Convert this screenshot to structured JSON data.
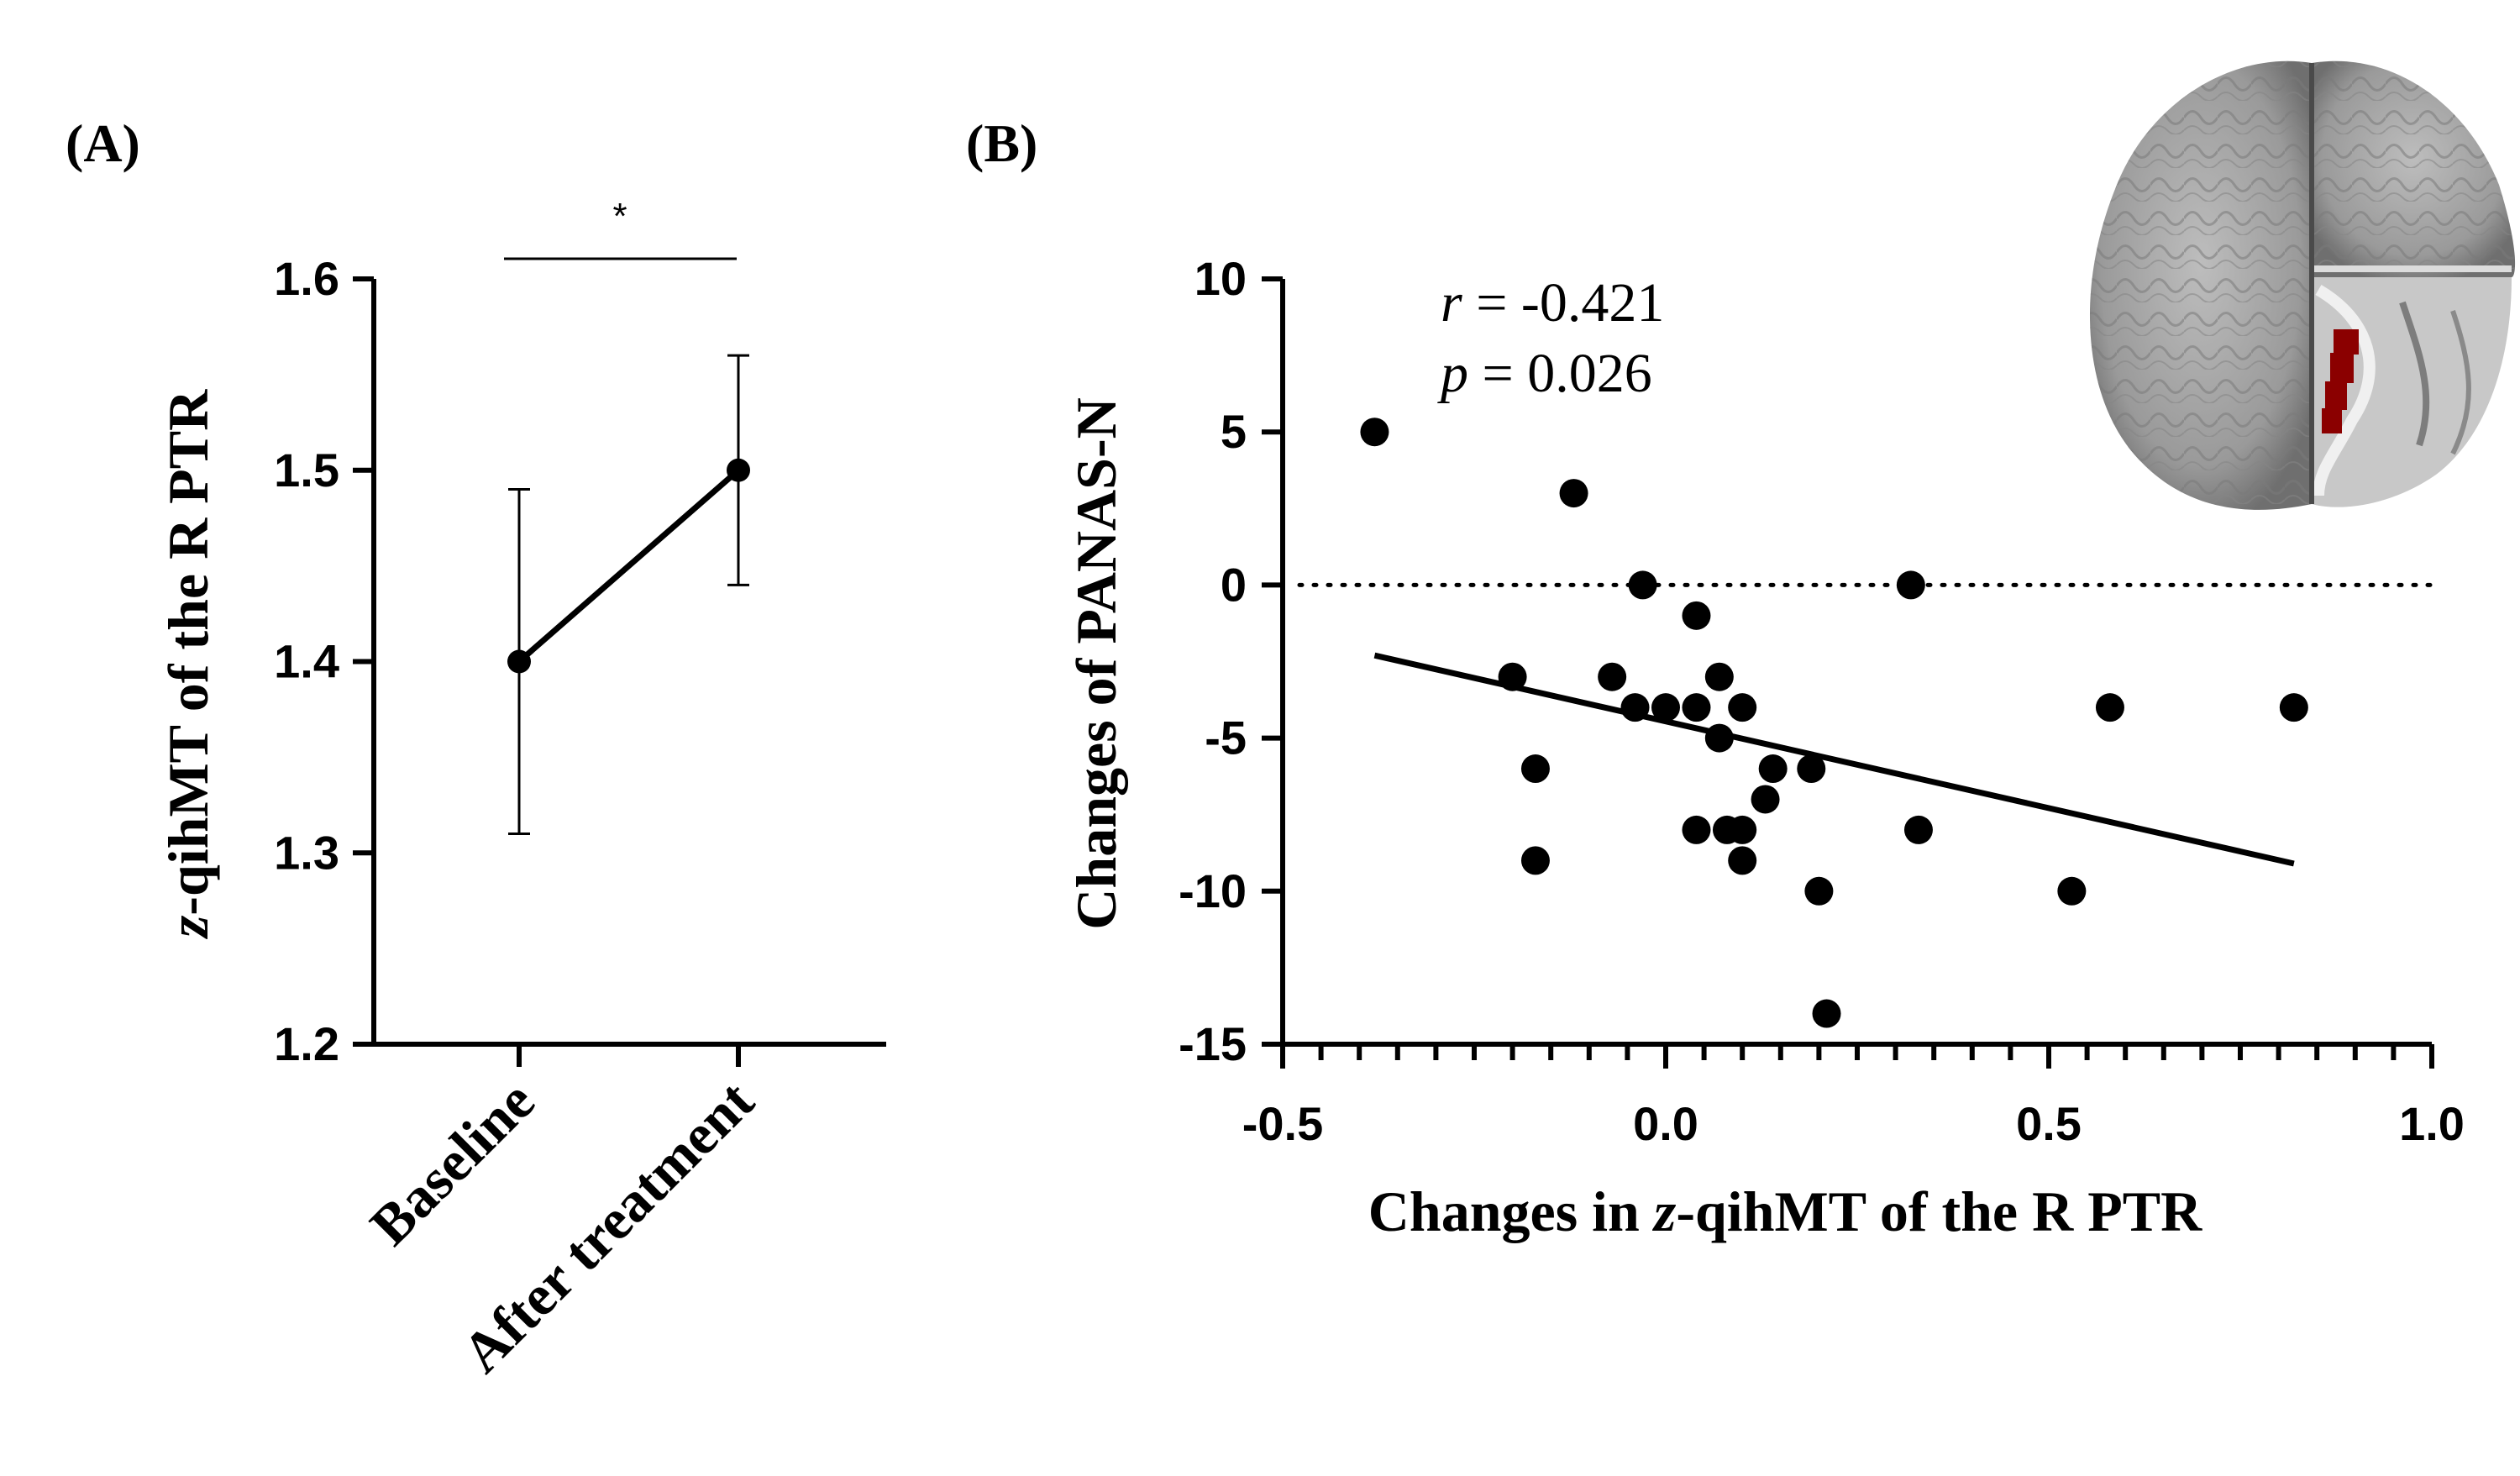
{
  "figure": {
    "panel_a_label": "(A)",
    "panel_b_label": "(B)"
  },
  "chart_data": [
    {
      "type": "line",
      "title": "",
      "xlabel": "",
      "ylabel_italic": "z",
      "ylabel_rest": "-qihMT of the R PTR",
      "categories": [
        "Baseline",
        "After treatment"
      ],
      "series": [
        {
          "name": "z-qihMT of the R PTR",
          "values": [
            1.4,
            1.5
          ],
          "error_low": [
            1.31,
            1.44
          ],
          "error_high": [
            1.49,
            1.56
          ]
        }
      ],
      "ylim": [
        1.2,
        1.6
      ],
      "yticks": [
        1.2,
        1.3,
        1.4,
        1.5,
        1.6
      ],
      "ytick_labels": [
        "1.2",
        "1.3",
        "1.4",
        "1.5",
        "1.6"
      ],
      "significance": "*"
    },
    {
      "type": "scatter",
      "title": "",
      "xlabel_prefix": "Changes in ",
      "xlabel_italic": "z",
      "xlabel_suffix": "-qihMT of the R PTR",
      "ylabel": "Changes of PANAS-N",
      "xlim": [
        -0.5,
        1.0
      ],
      "ylim": [
        -15,
        10
      ],
      "xticks": [
        -0.5,
        0.0,
        0.5,
        1.0
      ],
      "xtick_labels": [
        "-0.5",
        "0.0",
        "0.5",
        "1.0"
      ],
      "yticks": [
        -15,
        -10,
        -5,
        0,
        5,
        10
      ],
      "ytick_labels": [
        "-15",
        "-10",
        "-5",
        "0",
        "5",
        "10"
      ],
      "points": [
        {
          "x": -0.38,
          "y": 5
        },
        {
          "x": -0.12,
          "y": 3
        },
        {
          "x": -0.03,
          "y": 0
        },
        {
          "x": 0.32,
          "y": 0
        },
        {
          "x": 0.04,
          "y": -1
        },
        {
          "x": -0.2,
          "y": -3
        },
        {
          "x": -0.07,
          "y": -3
        },
        {
          "x": 0.07,
          "y": -3
        },
        {
          "x": -0.04,
          "y": -4
        },
        {
          "x": 0.0,
          "y": -4
        },
        {
          "x": 0.04,
          "y": -4
        },
        {
          "x": 0.1,
          "y": -4
        },
        {
          "x": 0.58,
          "y": -4
        },
        {
          "x": 0.82,
          "y": -4
        },
        {
          "x": 0.07,
          "y": -5
        },
        {
          "x": -0.17,
          "y": -6
        },
        {
          "x": 0.14,
          "y": -6
        },
        {
          "x": 0.19,
          "y": -6
        },
        {
          "x": 0.13,
          "y": -7
        },
        {
          "x": 0.04,
          "y": -8
        },
        {
          "x": 0.08,
          "y": -8
        },
        {
          "x": 0.1,
          "y": -8
        },
        {
          "x": 0.33,
          "y": -8
        },
        {
          "x": -0.17,
          "y": -9
        },
        {
          "x": 0.1,
          "y": -9
        },
        {
          "x": 0.2,
          "y": -10
        },
        {
          "x": 0.53,
          "y": -10
        },
        {
          "x": 0.21,
          "y": -14
        }
      ],
      "regression": {
        "x1": -0.38,
        "y1": -2.3,
        "x2": 0.82,
        "y2": -9.1
      },
      "reference_line_y": 0,
      "stats": {
        "r_symbol": "r",
        "r_value": " = -0.421",
        "p_symbol": "p",
        "p_value": " = 0.026"
      }
    }
  ],
  "inset": {
    "description": "brain axial render with highlighted region",
    "highlight_color": "#8b0000"
  }
}
